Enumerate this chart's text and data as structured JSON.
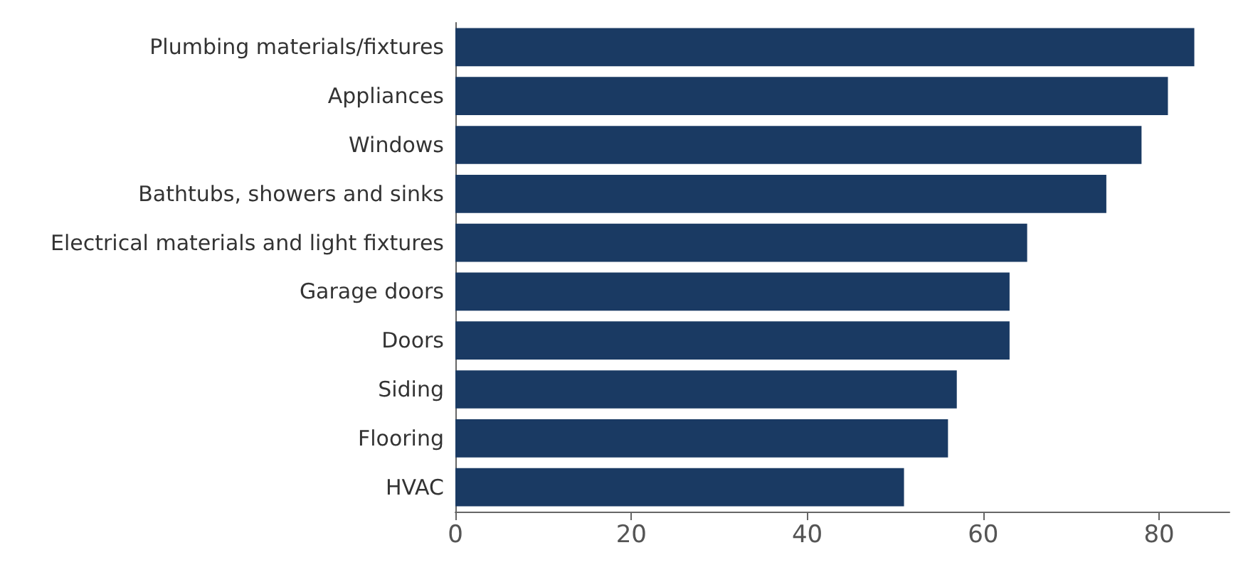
{
  "chart_data": {
    "type": "bar",
    "orientation": "horizontal",
    "categories": [
      "Plumbing materials/fixtures",
      "Appliances",
      "Windows",
      "Bathtubs, showers and sinks",
      "Electrical materials and light fixtures",
      "Garage doors",
      "Doors",
      "Siding",
      "Flooring",
      "HVAC"
    ],
    "values": [
      84,
      81,
      78,
      74,
      65,
      63,
      63,
      57,
      56,
      51
    ],
    "color": "#1a3a63",
    "xlim": [
      0,
      88
    ],
    "xticks": [
      0,
      20,
      40,
      60,
      80
    ],
    "grid": false
  }
}
